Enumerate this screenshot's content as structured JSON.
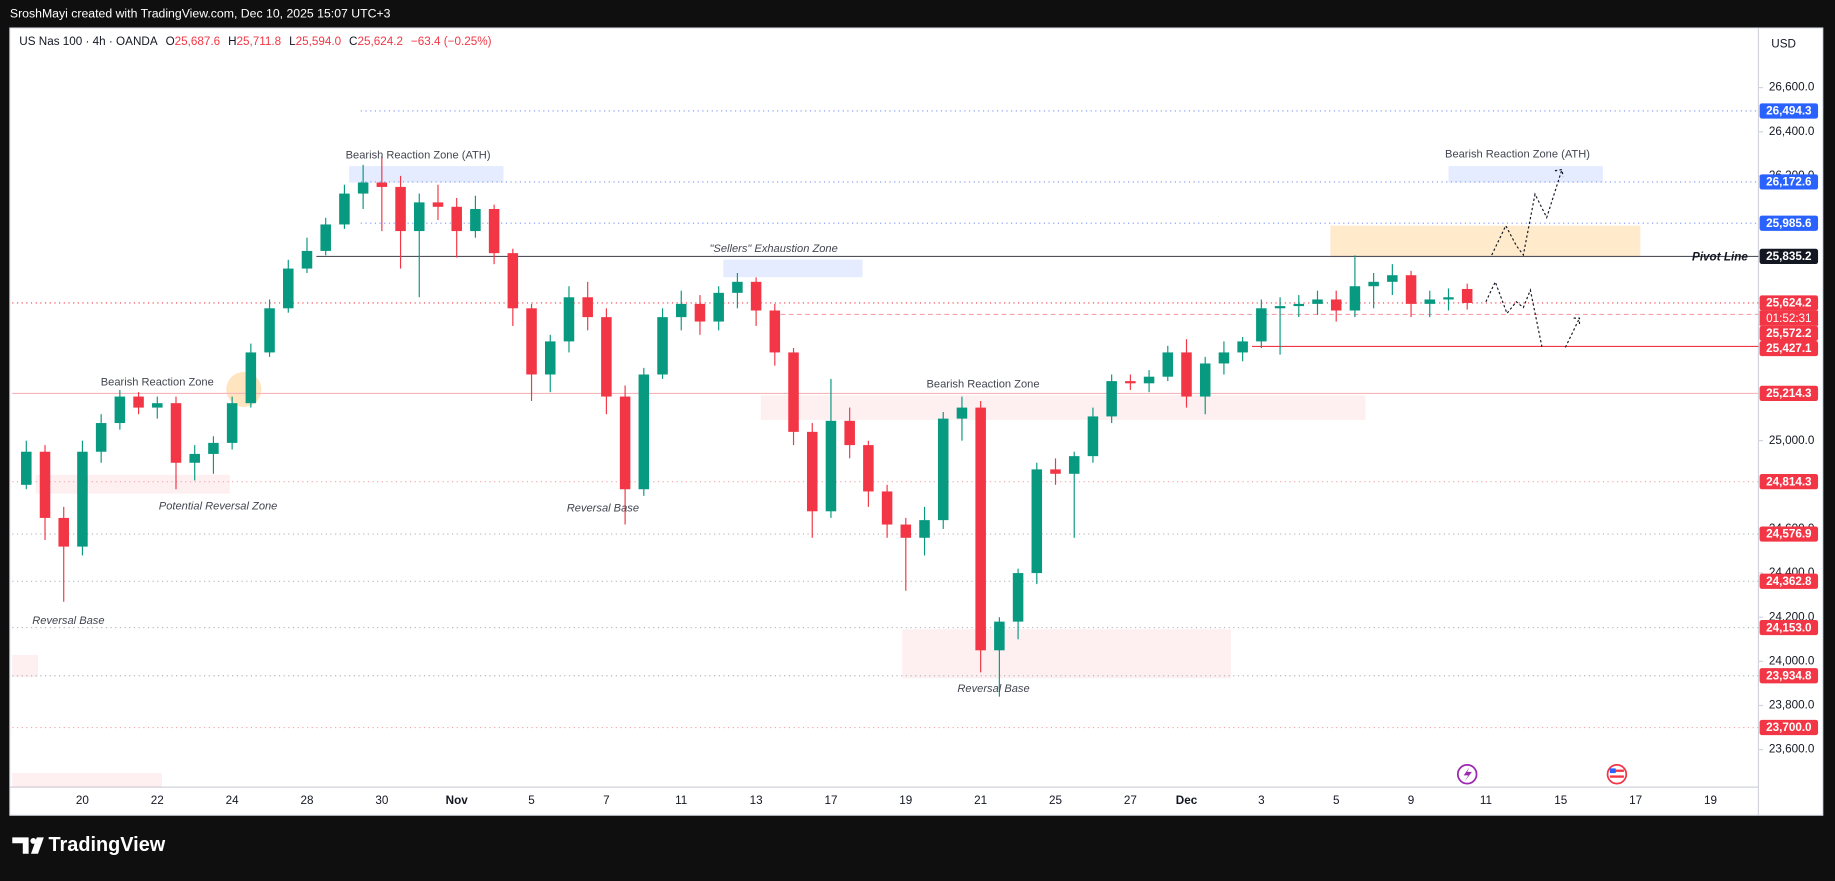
{
  "header": {
    "credit": "SroshMayi created with TradingView.com, Dec 10, 2025 15:07 UTC+3",
    "symbol": "US Nas 100 · 4h · OANDA",
    "ohlc": [
      {
        "key": "O",
        "value": "25,687.6"
      },
      {
        "key": "H",
        "value": "25,711.8"
      },
      {
        "key": "L",
        "value": "25,594.0"
      },
      {
        "key": "C",
        "value": "25,624.2"
      }
    ],
    "change": "−63.4 (−0.25%)"
  },
  "currency": "USD",
  "pivot_label": "Pivot Line",
  "countdown": "01:52:31",
  "annotations": [
    "Bearish Reaction Zone (ATH)",
    "Bearish Reaction Zone (ATH)",
    "\"Sellers\" Exhaustion Zone",
    "Bearish Reaction Zone",
    "Potential Reversal Zone",
    "Bearish Reaction Zone",
    "Reversal Base",
    "Reversal Base",
    "Reversal Base"
  ],
  "footer": {
    "brand": "TradingView"
  },
  "chart_data": {
    "type": "candlestick",
    "up_color": "#089981",
    "down_color": "#f23645",
    "categories": [
      null,
      null,
      null,
      "20",
      null,
      null,
      null,
      "22",
      null,
      null,
      null,
      "24",
      null,
      null,
      null,
      "28",
      null,
      null,
      null,
      "30",
      null,
      null,
      null,
      "Nov",
      null,
      null,
      null,
      "5",
      null,
      null,
      null,
      "7",
      null,
      null,
      null,
      "11",
      null,
      null,
      null,
      "13",
      null,
      null,
      null,
      "17",
      null,
      null,
      null,
      "19",
      null,
      null,
      null,
      "21",
      null,
      null,
      null,
      "25",
      null,
      null,
      null,
      "27",
      null,
      null,
      "Dec",
      null,
      null,
      null,
      "3",
      null,
      null,
      null,
      "5",
      null,
      null,
      null,
      "9",
      null,
      null,
      null,
      "11",
      null,
      null,
      null,
      "15",
      null,
      null,
      null,
      "17",
      null,
      null,
      null,
      "19"
    ],
    "open": [
      24800,
      24950,
      24650,
      24520,
      24950,
      25080,
      25200,
      25150,
      25170,
      24900,
      24940,
      24990,
      25170,
      25400,
      25600,
      25780,
      25860,
      25980,
      26120,
      26170,
      26150,
      25950,
      26080,
      26060,
      25950,
      26050,
      25850,
      25600,
      25300,
      25450,
      25650,
      25560,
      25200,
      24780,
      25300,
      25560,
      25620,
      25540,
      25670,
      25720,
      25590,
      25400,
      25040,
      24680,
      25090,
      24980,
      24770,
      24620,
      24560,
      24640,
      25100,
      25150,
      24050,
      24180,
      24400,
      24870,
      24850,
      24930,
      25110,
      25270,
      25260,
      25290,
      25400,
      25200,
      25350,
      25400,
      25450,
      25600,
      25610,
      25620,
      25640,
      25590,
      25700,
      25720,
      25750,
      25620,
      25640,
      25687.6,
      null,
      null,
      null,
      null,
      null,
      null,
      null,
      null,
      null,
      null,
      null,
      null,
      null
    ],
    "high": [
      25000,
      24980,
      24700,
      25000,
      25120,
      25230,
      25220,
      25200,
      25200,
      24980,
      25020,
      25200,
      25440,
      25640,
      25820,
      25920,
      26010,
      26160,
      26250,
      26290,
      26200,
      26120,
      26160,
      26100,
      26110,
      26070,
      25870,
      25620,
      25480,
      25700,
      25720,
      25600,
      25250,
      25330,
      25600,
      25680,
      25660,
      25700,
      25760,
      25740,
      25620,
      25420,
      25080,
      25280,
      25150,
      25000,
      24800,
      24650,
      24700,
      25130,
      25200,
      25180,
      24200,
      24420,
      24900,
      24920,
      24950,
      25150,
      25300,
      25300,
      25320,
      25430,
      25460,
      25380,
      25450,
      25470,
      25640,
      25650,
      25660,
      25680,
      25680,
      25840,
      25760,
      25800,
      25770,
      25680,
      25690,
      25711.8,
      null,
      null,
      null,
      null,
      null,
      null,
      null,
      null,
      null,
      null,
      null,
      null,
      null
    ],
    "low": [
      24780,
      24550,
      24270,
      24480,
      24900,
      25050,
      25120,
      25100,
      24780,
      24820,
      24850,
      24960,
      25150,
      25380,
      25580,
      25760,
      25840,
      25960,
      26050,
      25950,
      25780,
      25650,
      26000,
      25830,
      25920,
      25800,
      25520,
      25180,
      25220,
      25400,
      25500,
      25120,
      24620,
      24750,
      25280,
      25500,
      25480,
      25500,
      25600,
      25520,
      25340,
      24980,
      24560,
      24650,
      24920,
      24700,
      24560,
      24320,
      24480,
      24600,
      25000,
      23950,
      23840,
      24100,
      24350,
      24800,
      24560,
      24900,
      25080,
      25230,
      25220,
      25270,
      25150,
      25120,
      25300,
      25360,
      25420,
      25390,
      25560,
      25570,
      25540,
      25560,
      25600,
      25660,
      25560,
      25560,
      25590,
      25594.0,
      null,
      null,
      null,
      null,
      null,
      null,
      null,
      null,
      null,
      null,
      null,
      null,
      null
    ],
    "close": [
      24950,
      24650,
      24520,
      24950,
      25080,
      25200,
      25150,
      25170,
      24900,
      24940,
      24990,
      25170,
      25400,
      25600,
      25780,
      25860,
      25980,
      26120,
      26170,
      26150,
      25950,
      26080,
      26060,
      25950,
      26050,
      25850,
      25600,
      25300,
      25450,
      25650,
      25560,
      25200,
      24780,
      25300,
      25560,
      25620,
      25540,
      25670,
      25720,
      25590,
      25400,
      25040,
      24680,
      25090,
      24980,
      24770,
      24620,
      24560,
      24640,
      25100,
      25150,
      24050,
      24180,
      24400,
      24870,
      24850,
      24930,
      25110,
      25270,
      25260,
      25290,
      25400,
      25200,
      25350,
      25400,
      25450,
      25600,
      25610,
      25620,
      25640,
      25590,
      25700,
      25720,
      25750,
      25620,
      25640,
      25650,
      25624.2,
      null,
      null,
      null,
      null,
      null,
      null,
      null,
      null,
      null,
      null,
      null,
      null,
      null
    ],
    "ylim": [
      23430,
      26870
    ],
    "yticks": [
      {
        "value": 26600,
        "label": "26,600.0"
      },
      {
        "value": 26400,
        "label": "26,400.0"
      },
      {
        "value": 26200,
        "label": "26,200.0"
      },
      {
        "value": 25000,
        "label": "25,000.0"
      },
      {
        "value": 24600,
        "label": "24,600.0"
      },
      {
        "value": 24400,
        "label": "24,400.0"
      },
      {
        "value": 24200,
        "label": "24,200.0"
      },
      {
        "value": 24000,
        "label": "24,000.0"
      },
      {
        "value": 23800,
        "label": "23,800.0"
      },
      {
        "value": 23600,
        "label": "23,600.0"
      }
    ],
    "levels": [
      {
        "value": 26494.3,
        "label": "26,494.3",
        "color": "#2962ff",
        "line_color": "#7d95f5",
        "line": "dotted"
      },
      {
        "value": 26172.6,
        "label": "26,172.6",
        "color": "#2962ff",
        "line_color": "#7d95f5",
        "line": "dotted"
      },
      {
        "value": 25985.6,
        "label": "25,985.6",
        "color": "#2962ff",
        "line_color": "#7d95f5",
        "line": "dotted"
      },
      {
        "value": 25835.2,
        "label": "25,835.2",
        "color": "#131722",
        "line_color": "#50535e",
        "line": "solid"
      },
      {
        "value": 25624.2,
        "label": "25,624.2",
        "color": "#f23645",
        "line_color": "#f23645",
        "line": "dotted"
      },
      {
        "value": 25572.2,
        "label": "25,572.2",
        "color": "#f23645",
        "line_color": "#f7a1a8",
        "line": "dashed"
      },
      {
        "value": 25427.1,
        "label": "25,427.1",
        "color": "#f23645",
        "line_color": "#f23645",
        "line": "solid"
      },
      {
        "value": 25214.3,
        "label": "25,214.3",
        "color": "#f23645",
        "line_color": "#f9b4ba",
        "line": "solid"
      },
      {
        "value": 24814.3,
        "label": "24,814.3",
        "color": "#f23645",
        "line_color": "#f7a1a8",
        "line": "dotted"
      },
      {
        "value": 24576.9,
        "label": "24,576.9",
        "color": "#f23645",
        "line_color": "#b2b5be",
        "line": "dotted"
      },
      {
        "value": 24362.8,
        "label": "24,362.8",
        "color": "#f23645",
        "line_color": "#b2b5be",
        "line": "dotted"
      },
      {
        "value": 24153.0,
        "label": "24,153.0",
        "color": "#f23645",
        "line_color": "#b2b5be",
        "line": "dotted"
      },
      {
        "value": 23934.8,
        "label": "23,934.8",
        "color": "#f23645",
        "line_color": "#b2b5be",
        "line": "dotted"
      },
      {
        "value": 23700.0,
        "label": "23,700.0",
        "color": "#f23645",
        "line_color": "#f7a1a8",
        "line": "dotted"
      }
    ]
  }
}
